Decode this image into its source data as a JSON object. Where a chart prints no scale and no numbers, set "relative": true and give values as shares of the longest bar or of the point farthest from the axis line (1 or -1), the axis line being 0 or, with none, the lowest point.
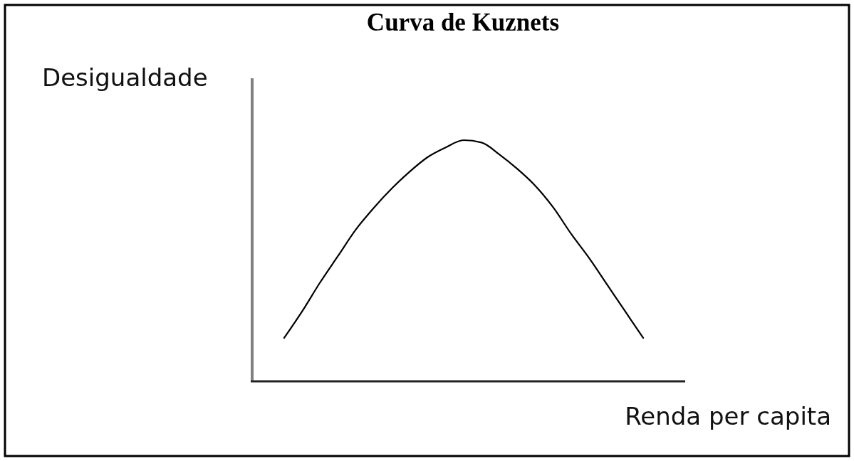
{
  "chart_data": {
    "type": "line",
    "title": "Curva de Kuznets",
    "xlabel": "Renda per capita",
    "ylabel": "Desigualdade",
    "categories": [
      null,
      null,
      null,
      null,
      null,
      null,
      null,
      null,
      null,
      null,
      null,
      null,
      null,
      null,
      null,
      null,
      null,
      null,
      null,
      null,
      null
    ],
    "relative": true,
    "series": [
      {
        "color": "#000000",
        "values": [
          0.18,
          0.29,
          0.41,
          0.52,
          0.63,
          0.72,
          0.8,
          0.87,
          0.93,
          0.97,
          1,
          0.99,
          0.94,
          0.88,
          0.81,
          0.72,
          0.61,
          0.51,
          0.4,
          0.29,
          0.18
        ]
      }
    ]
  }
}
